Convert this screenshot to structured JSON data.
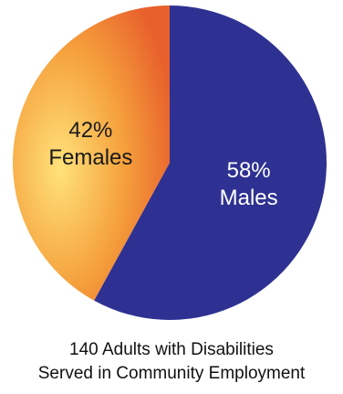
{
  "chart_data": {
    "type": "pie",
    "slices": [
      {
        "category": "Males",
        "value": 58,
        "label_pct": "58%",
        "label_name": "Males",
        "color": "#2E3192",
        "label_color": "#ffffff"
      },
      {
        "category": "Females",
        "value": 42,
        "label_pct": "42%",
        "label_name": "Females",
        "color": "#F7A93B",
        "gradient": [
          "#FFE27A",
          "#F09A3A",
          "#E8612C"
        ],
        "label_color": "#1a1a1a"
      }
    ],
    "start_angle_deg": 0,
    "direction": "clockwise",
    "caption_line1": "140 Adults with Disabilities",
    "caption_line2": "Served in Community Employment"
  }
}
